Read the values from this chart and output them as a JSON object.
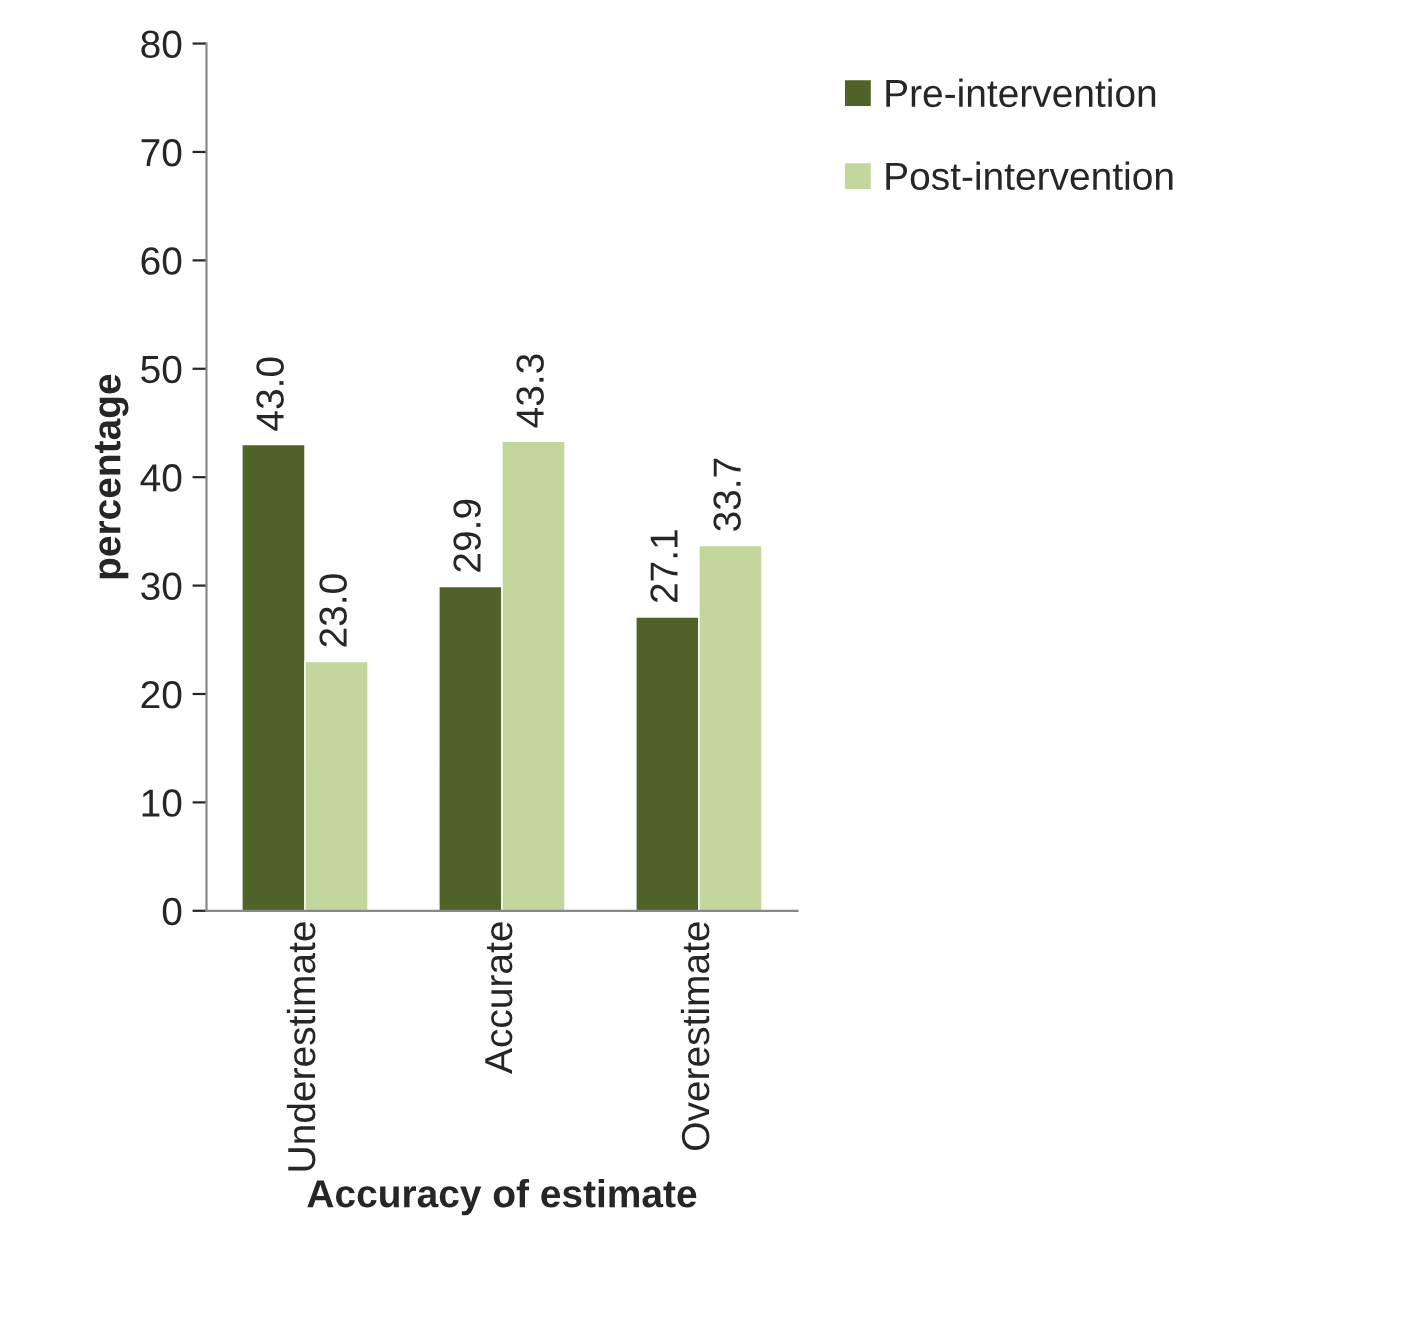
{
  "chart_data": {
    "type": "bar",
    "xlabel": "Accuracy of estimate",
    "ylabel": "percentage",
    "categories": [
      "Underestimate",
      "Accurate",
      "Overestimate"
    ],
    "series": [
      {
        "name": "Pre-intervention",
        "color": "#4f6228",
        "values": [
          43.0,
          29.9,
          27.1
        ],
        "value_labels": [
          "43.0",
          "29.9",
          "27.1"
        ]
      },
      {
        "name": "Post-intervention",
        "color": "#c3d69b",
        "values": [
          23.0,
          43.3,
          33.7
        ],
        "value_labels": [
          "23.0",
          "43.3",
          "33.7"
        ]
      }
    ],
    "ylim": [
      0,
      80
    ],
    "yticks": [
      0,
      10,
      20,
      30,
      40,
      50,
      60,
      70,
      80
    ],
    "grid": false,
    "legend": "top right"
  }
}
